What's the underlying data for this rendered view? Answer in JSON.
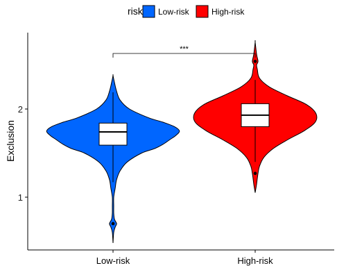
{
  "chart_data": {
    "type": "violin",
    "title": "",
    "xlabel": "",
    "ylabel": "Exclusion",
    "ylim": [
      0.5,
      2.8
    ],
    "yticks": [
      1,
      2
    ],
    "grid": false,
    "legend": {
      "title": "risk",
      "placement": "top",
      "entries": [
        {
          "name": "Low-risk",
          "color": "#0066FF"
        },
        {
          "name": "High-risk",
          "color": "#FF0000"
        }
      ]
    },
    "categories": [
      "Low-risk",
      "High-risk"
    ],
    "series": [
      {
        "name": "Low-risk",
        "color": "#0066FF",
        "box": {
          "q1": 1.59,
          "median": 1.74,
          "q3": 1.84,
          "whisker_low": 1.17,
          "whisker_high": 2.19
        },
        "outliers": [
          0.7
        ],
        "density_y": [
          0.48,
          0.6,
          0.66,
          0.7,
          0.75,
          0.82,
          0.9,
          1.0,
          1.1,
          1.2,
          1.3,
          1.4,
          1.5,
          1.55,
          1.6,
          1.65,
          1.7,
          1.75,
          1.8,
          1.85,
          1.9,
          2.0,
          2.1,
          2.2,
          2.3,
          2.38
        ],
        "density_width": [
          0.0,
          0.01,
          0.03,
          0.05,
          0.02,
          0.01,
          0.01,
          0.01,
          0.03,
          0.05,
          0.1,
          0.2,
          0.4,
          0.58,
          0.7,
          0.79,
          0.88,
          0.93,
          0.86,
          0.7,
          0.5,
          0.23,
          0.1,
          0.05,
          0.02,
          0.0
        ]
      },
      {
        "name": "High-risk",
        "color": "#FF0000",
        "box": {
          "q1": 1.8,
          "median": 1.93,
          "q3": 2.06,
          "whisker_low": 1.4,
          "whisker_high": 2.33
        },
        "outliers": [
          1.27,
          2.54
        ],
        "density_y": [
          1.05,
          1.15,
          1.27,
          1.35,
          1.45,
          1.55,
          1.65,
          1.75,
          1.85,
          1.95,
          2.05,
          2.15,
          2.25,
          2.35,
          2.45,
          2.5,
          2.54,
          2.62,
          2.76
        ],
        "density_width": [
          0.0,
          0.02,
          0.04,
          0.06,
          0.12,
          0.25,
          0.45,
          0.68,
          0.84,
          0.85,
          0.72,
          0.45,
          0.2,
          0.06,
          0.03,
          0.02,
          0.04,
          0.02,
          0.0
        ]
      }
    ],
    "annotations": [
      {
        "type": "significance",
        "between": [
          "Low-risk",
          "High-risk"
        ],
        "label": "***",
        "y": 2.63
      }
    ]
  }
}
